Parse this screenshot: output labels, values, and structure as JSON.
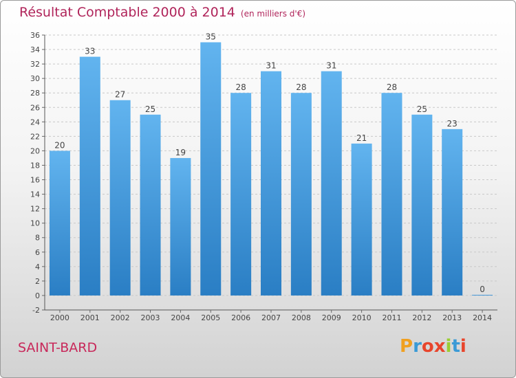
{
  "title": "Résultat Comptable 2000 à 2014",
  "subtitle": "(en milliers d'€)",
  "commune": "SAINT-BARD",
  "logo": {
    "letters": [
      "P",
      "r",
      "o",
      "x",
      "i",
      "t",
      "i"
    ],
    "colors": [
      "#f0a020",
      "#3a9ad6",
      "#e8452c",
      "#e8452c",
      "#9acd32",
      "#3a9ad6",
      "#e8452c"
    ]
  },
  "colors": {
    "bar_light": "#62b4ef",
    "bar_dark": "#2a7ec4",
    "title": "#b0245a"
  },
  "chart_data": {
    "type": "bar",
    "categories": [
      "2000",
      "2001",
      "2002",
      "2003",
      "2004",
      "2005",
      "2006",
      "2007",
      "2008",
      "2009",
      "2010",
      "2011",
      "2012",
      "2013",
      "2014"
    ],
    "values": [
      20,
      33,
      27,
      25,
      19,
      35,
      28,
      31,
      28,
      31,
      21,
      28,
      25,
      23,
      0
    ],
    "data_labels": [
      "20",
      "33",
      "27",
      "25",
      "19",
      "35",
      "28",
      "31",
      "28",
      "31",
      "21",
      "28",
      "25",
      "23",
      "0"
    ],
    "yticks": [
      "-2",
      "0",
      "2",
      "4",
      "6",
      "8",
      "10",
      "12",
      "14",
      "16",
      "18",
      "20",
      "22",
      "24",
      "26",
      "28",
      "30",
      "32",
      "34",
      "36"
    ],
    "ylim": [
      -2,
      36
    ],
    "grid": true
  }
}
